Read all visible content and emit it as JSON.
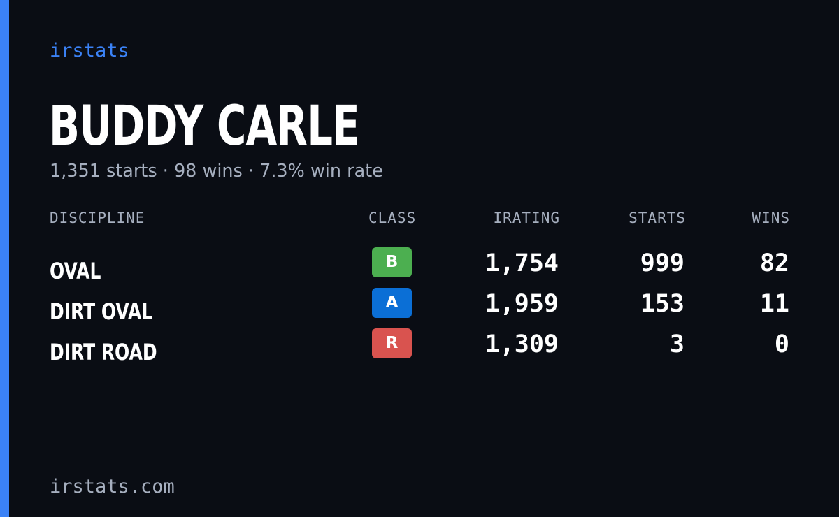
{
  "brand": "irstats",
  "driver": {
    "name": "BUDDY CARLE",
    "summary": "1,351 starts · 98 wins · 7.3% win rate"
  },
  "table": {
    "headers": {
      "discipline": "DISCIPLINE",
      "class": "CLASS",
      "irating": "IRATING",
      "starts": "STARTS",
      "wins": "WINS"
    },
    "rows": [
      {
        "discipline": "OVAL",
        "class": "B",
        "class_color": "#4caf50",
        "irating": "1,754",
        "starts": "999",
        "wins": "82"
      },
      {
        "discipline": "DIRT OVAL",
        "class": "A",
        "class_color": "#0b6fd6",
        "irating": "1,959",
        "starts": "153",
        "wins": "11"
      },
      {
        "discipline": "DIRT ROAD",
        "class": "R",
        "class_color": "#d9534f",
        "irating": "1,309",
        "starts": "3",
        "wins": "0"
      }
    ]
  },
  "footer": {
    "domain": "irstats.com"
  },
  "colors": {
    "accent": "#3b82f6",
    "background": "#0a0d14",
    "muted_text": "#a6afbf"
  }
}
